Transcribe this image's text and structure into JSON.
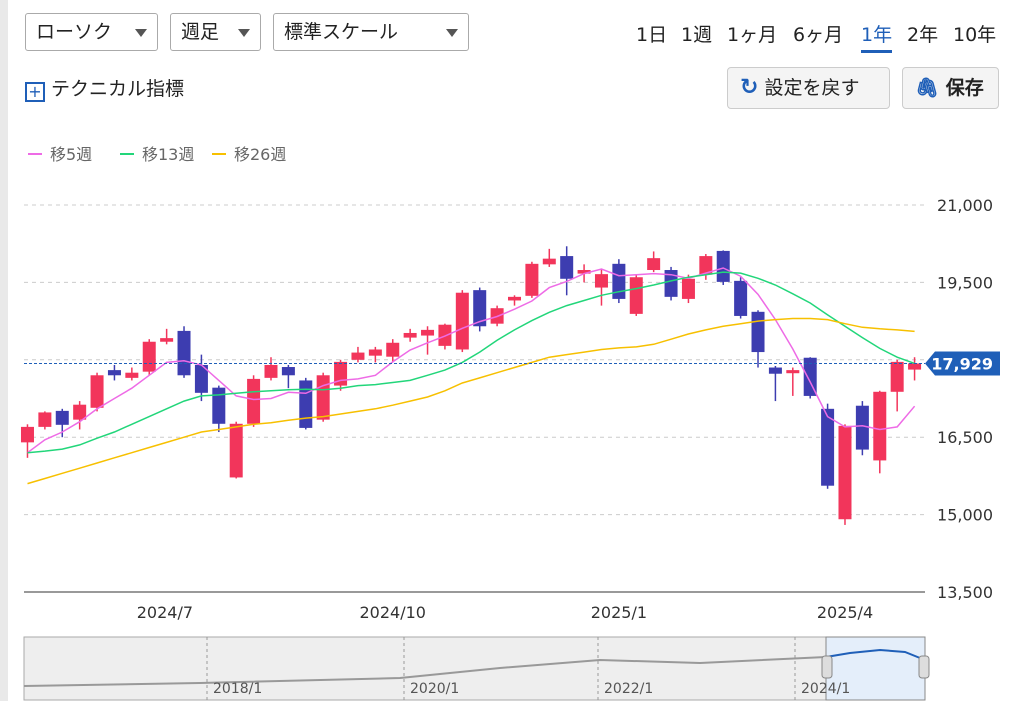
{
  "controls": {
    "chart_type": "ローソク",
    "interval": "週足",
    "scale": "標準スケール",
    "periods": [
      "1日",
      "1週",
      "1ヶ月",
      "6ヶ月",
      "1年",
      "2年",
      "10年"
    ],
    "selected_period": 4,
    "technical": "テクニカル指標",
    "reset": "設定を戻す",
    "save": "保存"
  },
  "chart_data": {
    "type": "candlestick",
    "categories": [
      null,
      null,
      null,
      null,
      null,
      null,
      null,
      null,
      null,
      null,
      null,
      null,
      null,
      null,
      null,
      null,
      null,
      null,
      null,
      null,
      null,
      null,
      null,
      null,
      null,
      null,
      null,
      null,
      null,
      null,
      null,
      null,
      null,
      null,
      null,
      null,
      null,
      null,
      null,
      null,
      null,
      null,
      null,
      null,
      null,
      null,
      null,
      null,
      null,
      null,
      null,
      null
    ],
    "open": [
      16400,
      16700,
      17010,
      16840,
      17070,
      17800,
      17650,
      17770,
      18350,
      18560,
      17900,
      17460,
      15720,
      16760,
      17650,
      17860,
      17600,
      16840,
      17500,
      18000,
      18080,
      18060,
      18430,
      18470,
      18270,
      18200,
      19350,
      18700,
      19150,
      19240,
      19850,
      20010,
      19670,
      19400,
      19860,
      18890,
      19740,
      19740,
      19180,
      19650,
      20110,
      19530,
      18930,
      17850,
      17740,
      18040,
      17050,
      14910,
      17110,
      16050,
      17380,
      17810
    ],
    "high": [
      16750,
      17000,
      17050,
      17200,
      17750,
      17900,
      17850,
      18400,
      18600,
      18650,
      18100,
      17500,
      16800,
      17700,
      18050,
      17900,
      17650,
      17750,
      18000,
      18250,
      18250,
      18400,
      18600,
      18650,
      18700,
      19350,
      19400,
      19050,
      19250,
      19900,
      20150,
      20200,
      19850,
      19750,
      19950,
      19650,
      20100,
      19800,
      19650,
      20050,
      20120,
      19600,
      18960,
      17880,
      17850,
      18050,
      17150,
      16750,
      17200,
      17400,
      18000,
      18050
    ],
    "low": [
      16100,
      16650,
      16500,
      16650,
      17000,
      17600,
      17600,
      17700,
      18300,
      17650,
      17200,
      16600,
      15700,
      16700,
      17600,
      17450,
      16650,
      16800,
      17400,
      17950,
      17950,
      17950,
      18350,
      18100,
      18200,
      18150,
      18550,
      18650,
      19050,
      19200,
      19800,
      19250,
      19500,
      19050,
      19100,
      18850,
      19700,
      19150,
      19100,
      19550,
      19450,
      18800,
      17850,
      17200,
      17300,
      17250,
      15500,
      14800,
      16150,
      15800,
      17000,
      17600
    ],
    "close": [
      16700,
      16980,
      16740,
      17130,
      17700,
      17700,
      17750,
      18350,
      18420,
      17700,
      17360,
      16760,
      16760,
      17630,
      17900,
      17700,
      16680,
      17700,
      17960,
      18140,
      18200,
      18330,
      18520,
      18580,
      18680,
      19300,
      18650,
      19000,
      19220,
      19860,
      19960,
      19570,
      19740,
      19660,
      19180,
      19600,
      19970,
      19220,
      19570,
      20010,
      19510,
      18850,
      18150,
      17730,
      17800,
      17300,
      15560,
      16720,
      16260,
      17380,
      17960,
      17929
    ],
    "up_color": "#f2355b",
    "down_color": "#3d3db0",
    "series": [
      {
        "name": "移5週",
        "color": "#ee6be6",
        "values": [
          16200,
          16450,
          16600,
          16800,
          17050,
          17250,
          17450,
          17700,
          17950,
          17980,
          17900,
          17600,
          17300,
          17230,
          17250,
          17370,
          17350,
          17500,
          17600,
          17630,
          17700,
          17960,
          18190,
          18330,
          18460,
          18610,
          18740,
          18840,
          18980,
          19140,
          19400,
          19520,
          19670,
          19760,
          19630,
          19650,
          19670,
          19650,
          19580,
          19680,
          19780,
          19620,
          19270,
          18780,
          18210,
          17570,
          16900,
          16700,
          16720,
          16650,
          16700,
          17100
        ]
      },
      {
        "name": "移13週",
        "color": "#22d67a",
        "values": [
          16200,
          16230,
          16270,
          16350,
          16480,
          16600,
          16750,
          16900,
          17050,
          17200,
          17300,
          17320,
          17350,
          17380,
          17400,
          17420,
          17430,
          17420,
          17450,
          17500,
          17520,
          17560,
          17600,
          17700,
          17800,
          17950,
          18150,
          18380,
          18580,
          18760,
          18920,
          19050,
          19150,
          19250,
          19320,
          19380,
          19450,
          19530,
          19600,
          19650,
          19700,
          19680,
          19580,
          19450,
          19280,
          19100,
          18870,
          18650,
          18430,
          18220,
          18050,
          17930
        ]
      },
      {
        "name": "移26週",
        "color": "#f7c000",
        "values": [
          15600,
          15700,
          15800,
          15900,
          16000,
          16100,
          16200,
          16300,
          16400,
          16500,
          16600,
          16650,
          16700,
          16750,
          16780,
          16830,
          16870,
          16900,
          16950,
          17000,
          17050,
          17120,
          17200,
          17280,
          17400,
          17550,
          17650,
          17750,
          17850,
          17950,
          18050,
          18100,
          18150,
          18200,
          18230,
          18250,
          18300,
          18400,
          18500,
          18580,
          18650,
          18700,
          18750,
          18780,
          18800,
          18800,
          18780,
          18700,
          18630,
          18600,
          18580,
          18550
        ]
      }
    ],
    "ylim": [
      13500,
      21000
    ],
    "yticks": [
      {
        "value": 13500,
        "label": "13,500"
      },
      {
        "value": 15000,
        "label": "15,000"
      },
      {
        "value": 16500,
        "label": "16,500"
      },
      {
        "value": 19500,
        "label": "19,500"
      },
      {
        "value": 21000,
        "label": "21,000"
      }
    ],
    "gridlines": [
      15000,
      16500,
      18000,
      19500,
      21000
    ],
    "xlim": [
      -0.2,
      51.6
    ],
    "xticks": [
      {
        "value": 7.9,
        "label": "2024/7"
      },
      {
        "value": 21.0,
        "label": "2024/10"
      },
      {
        "value": 34.0,
        "label": "2025/1"
      },
      {
        "value": 47.0,
        "label": "2025/4"
      }
    ],
    "current_price": {
      "value": 17929,
      "label": "17,929",
      "color": "#1f5fb8"
    }
  },
  "navigator": {
    "labels": [
      "2018/1",
      "2020/1",
      "2022/1",
      "2024/1"
    ]
  }
}
